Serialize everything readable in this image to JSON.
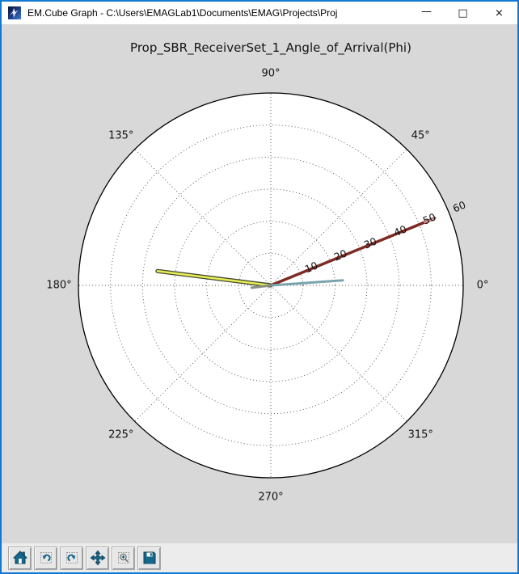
{
  "window": {
    "title": "EM.Cube Graph - C:\\Users\\EMAGLab1\\Documents\\EMAG\\Projects\\Proj",
    "controls": {
      "minimize": "—",
      "maximize": "□",
      "close": "×"
    }
  },
  "toolbar": {
    "buttons": [
      "home",
      "back",
      "forward",
      "pan",
      "zoom-to-rect",
      "save"
    ]
  },
  "chart_data": {
    "type": "line",
    "subtype": "polar",
    "title": "Prop_SBR_ReceiverSet_1_Angle_of_Arrival(Phi)",
    "r_max": 60,
    "r_ticks": [
      10,
      20,
      30,
      40,
      50,
      60
    ],
    "r_tick_labels": [
      "10",
      "20",
      "30",
      "40",
      "50",
      "60"
    ],
    "rlabel_angle_deg": 22.5,
    "angle_ticks_deg": [
      0,
      45,
      90,
      135,
      180,
      225,
      270,
      315
    ],
    "angle_tick_labels": [
      "0°",
      "45°",
      "90°",
      "135°",
      "180°",
      "225°",
      "270°",
      "315°"
    ],
    "grid": "dotted",
    "series": [
      {
        "name": "ray-dark-red",
        "angle_deg": 22.3,
        "r": 55.2,
        "color": "#7e2a24",
        "tip_color": "#d8979b",
        "width": 3.5
      },
      {
        "name": "ray-yellow",
        "angle_deg": 172.8,
        "r": 35.6,
        "color": "#e6ee52",
        "edge_color": "#454a33",
        "width": 2.6
      },
      {
        "name": "ray-steel-blue",
        "angle_deg": 4.0,
        "r": 22.5,
        "color": "#7aa4ad",
        "width": 3
      },
      {
        "name": "ray-gray-stub",
        "angle_deg": 187.0,
        "r": 6.0,
        "color": "#8c8c85",
        "width": 3
      }
    ]
  }
}
